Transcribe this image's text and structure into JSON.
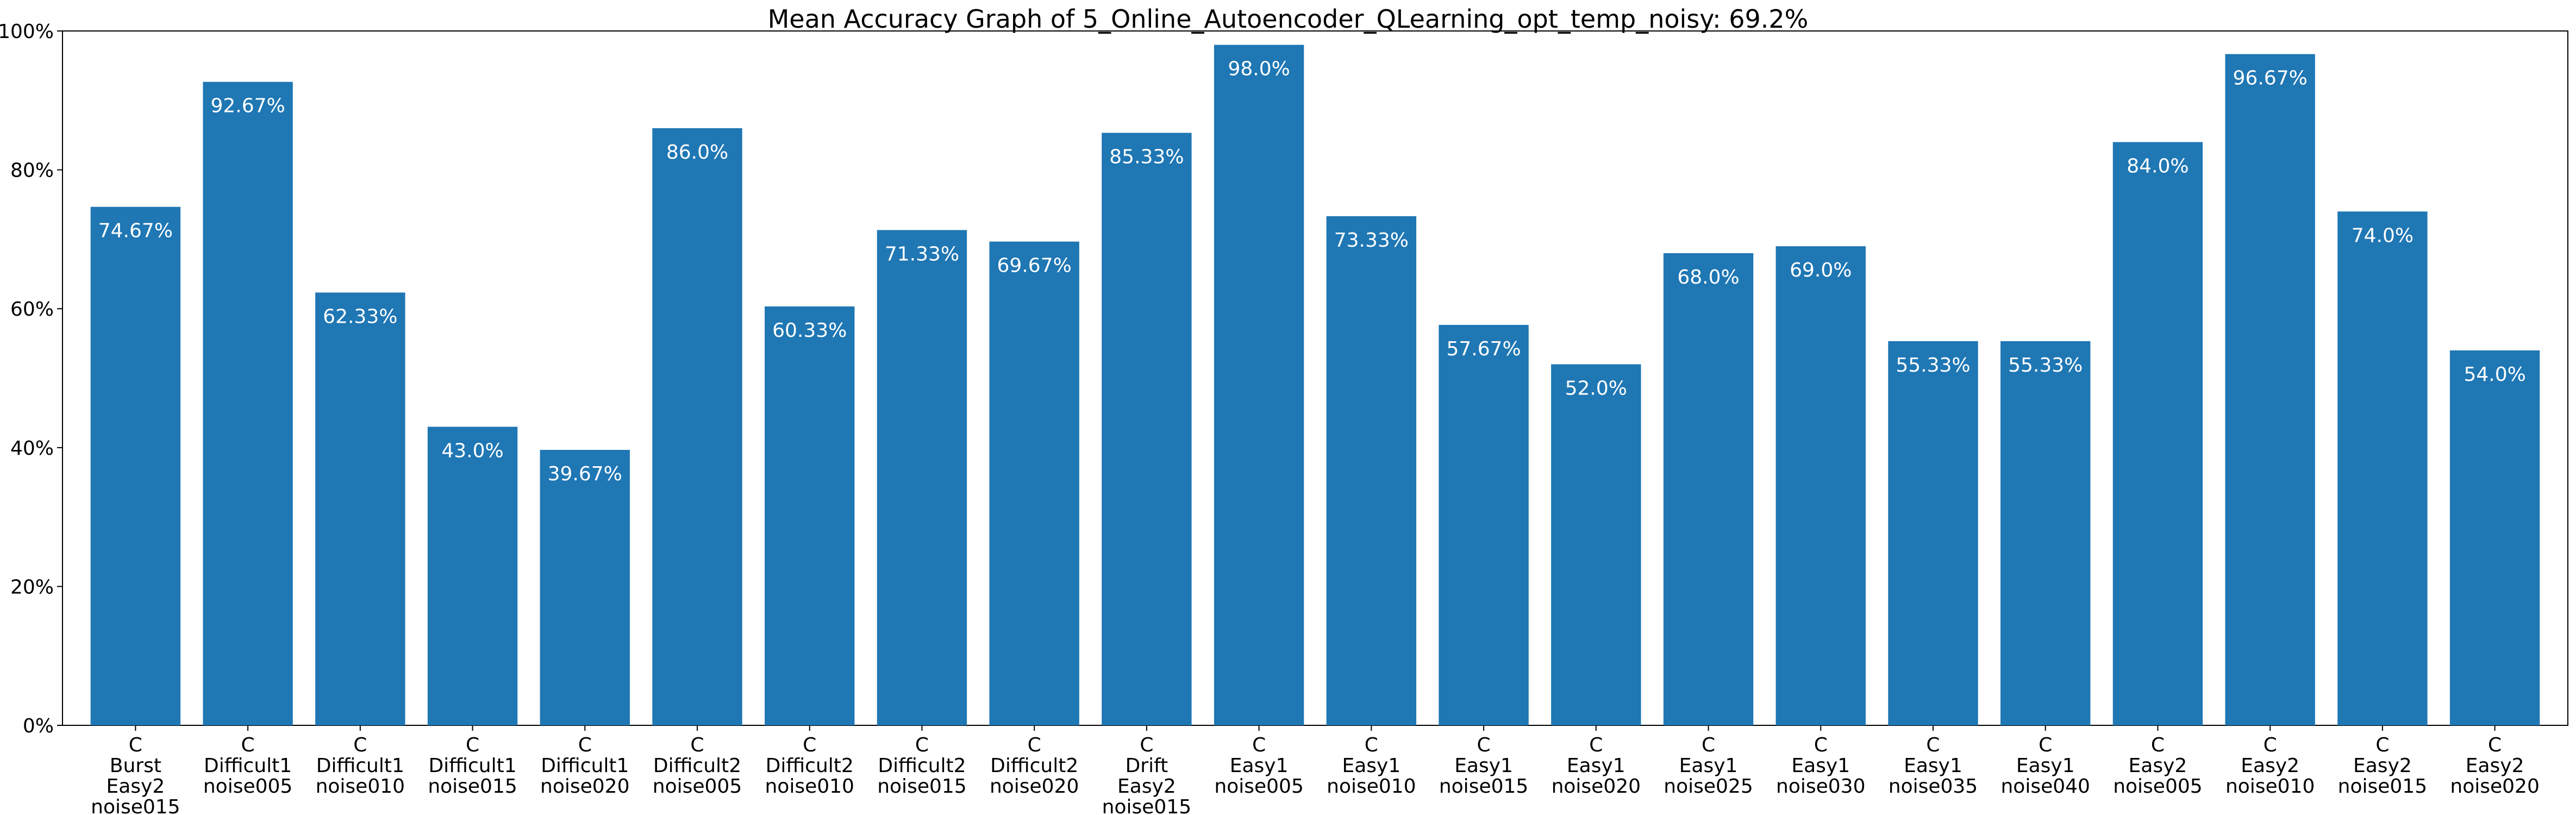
{
  "chart_data": {
    "type": "bar",
    "title": "Mean Accuracy Graph of 5_Online_Autoencoder_QLearning_opt_temp_noisy: 69.2%",
    "xlabel": "",
    "ylabel": "",
    "ylim": [
      0,
      100
    ],
    "y_ticks": [
      0,
      20,
      40,
      60,
      80,
      100
    ],
    "y_tick_labels": [
      "0%",
      "20%",
      "40%",
      "60%",
      "80%",
      "100%"
    ],
    "grid": false,
    "bar_color": "#1f77b4",
    "data_label_color": "#ffffff",
    "categories": [
      [
        "C",
        "Burst",
        "Easy2",
        "noise015"
      ],
      [
        "C",
        "Difficult1",
        "noise005"
      ],
      [
        "C",
        "Difficult1",
        "noise010"
      ],
      [
        "C",
        "Difficult1",
        "noise015"
      ],
      [
        "C",
        "Difficult1",
        "noise020"
      ],
      [
        "C",
        "Difficult2",
        "noise005"
      ],
      [
        "C",
        "Difficult2",
        "noise010"
      ],
      [
        "C",
        "Difficult2",
        "noise015"
      ],
      [
        "C",
        "Difficult2",
        "noise020"
      ],
      [
        "C",
        "Drift",
        "Easy2",
        "noise015"
      ],
      [
        "C",
        "Easy1",
        "noise005"
      ],
      [
        "C",
        "Easy1",
        "noise010"
      ],
      [
        "C",
        "Easy1",
        "noise015"
      ],
      [
        "C",
        "Easy1",
        "noise020"
      ],
      [
        "C",
        "Easy1",
        "noise025"
      ],
      [
        "C",
        "Easy1",
        "noise030"
      ],
      [
        "C",
        "Easy1",
        "noise035"
      ],
      [
        "C",
        "Easy1",
        "noise040"
      ],
      [
        "C",
        "Easy2",
        "noise005"
      ],
      [
        "C",
        "Easy2",
        "noise010"
      ],
      [
        "C",
        "Easy2",
        "noise015"
      ],
      [
        "C",
        "Easy2",
        "noise020"
      ]
    ],
    "values": [
      74.67,
      92.67,
      62.33,
      43.0,
      39.67,
      86.0,
      60.33,
      71.33,
      69.67,
      85.33,
      98.0,
      73.33,
      57.67,
      52.0,
      68.0,
      69.0,
      55.33,
      55.33,
      84.0,
      96.67,
      74.0,
      54.0
    ],
    "data_labels": [
      "74.67%",
      "92.67%",
      "62.33%",
      "43.0%",
      "39.67%",
      "86.0%",
      "60.33%",
      "71.33%",
      "69.67%",
      "85.33%",
      "98.0%",
      "73.33%",
      "57.67%",
      "52.0%",
      "68.0%",
      "69.0%",
      "55.33%",
      "55.33%",
      "84.0%",
      "96.67%",
      "74.0%",
      "54.0%"
    ]
  }
}
